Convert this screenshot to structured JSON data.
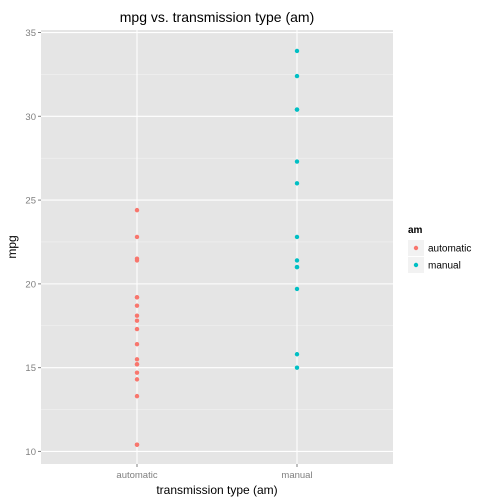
{
  "chart_data": {
    "type": "scatter",
    "title": "mpg vs. transmission type (am)",
    "xlabel": "transmission type (am)",
    "ylabel": "mpg",
    "categories": [
      "automatic",
      "manual"
    ],
    "ylim": [
      9.25,
      35.15
    ],
    "yticks": [
      10,
      15,
      20,
      25,
      30,
      35
    ],
    "grid": true,
    "legend": {
      "title": "am",
      "position": "right"
    },
    "series": [
      {
        "name": "automatic",
        "color": "#F8766D",
        "x": "automatic",
        "values": [
          21.4,
          18.7,
          18.1,
          14.3,
          24.4,
          22.8,
          19.2,
          17.8,
          16.4,
          17.3,
          15.2,
          10.4,
          10.4,
          14.7,
          21.5,
          15.5,
          15.2,
          13.3,
          19.2
        ]
      },
      {
        "name": "manual",
        "color": "#00BFC4",
        "x": "manual",
        "values": [
          21.0,
          21.0,
          22.8,
          32.4,
          30.4,
          33.9,
          27.3,
          26.0,
          30.4,
          15.8,
          19.7,
          15.0,
          21.4
        ]
      }
    ]
  }
}
